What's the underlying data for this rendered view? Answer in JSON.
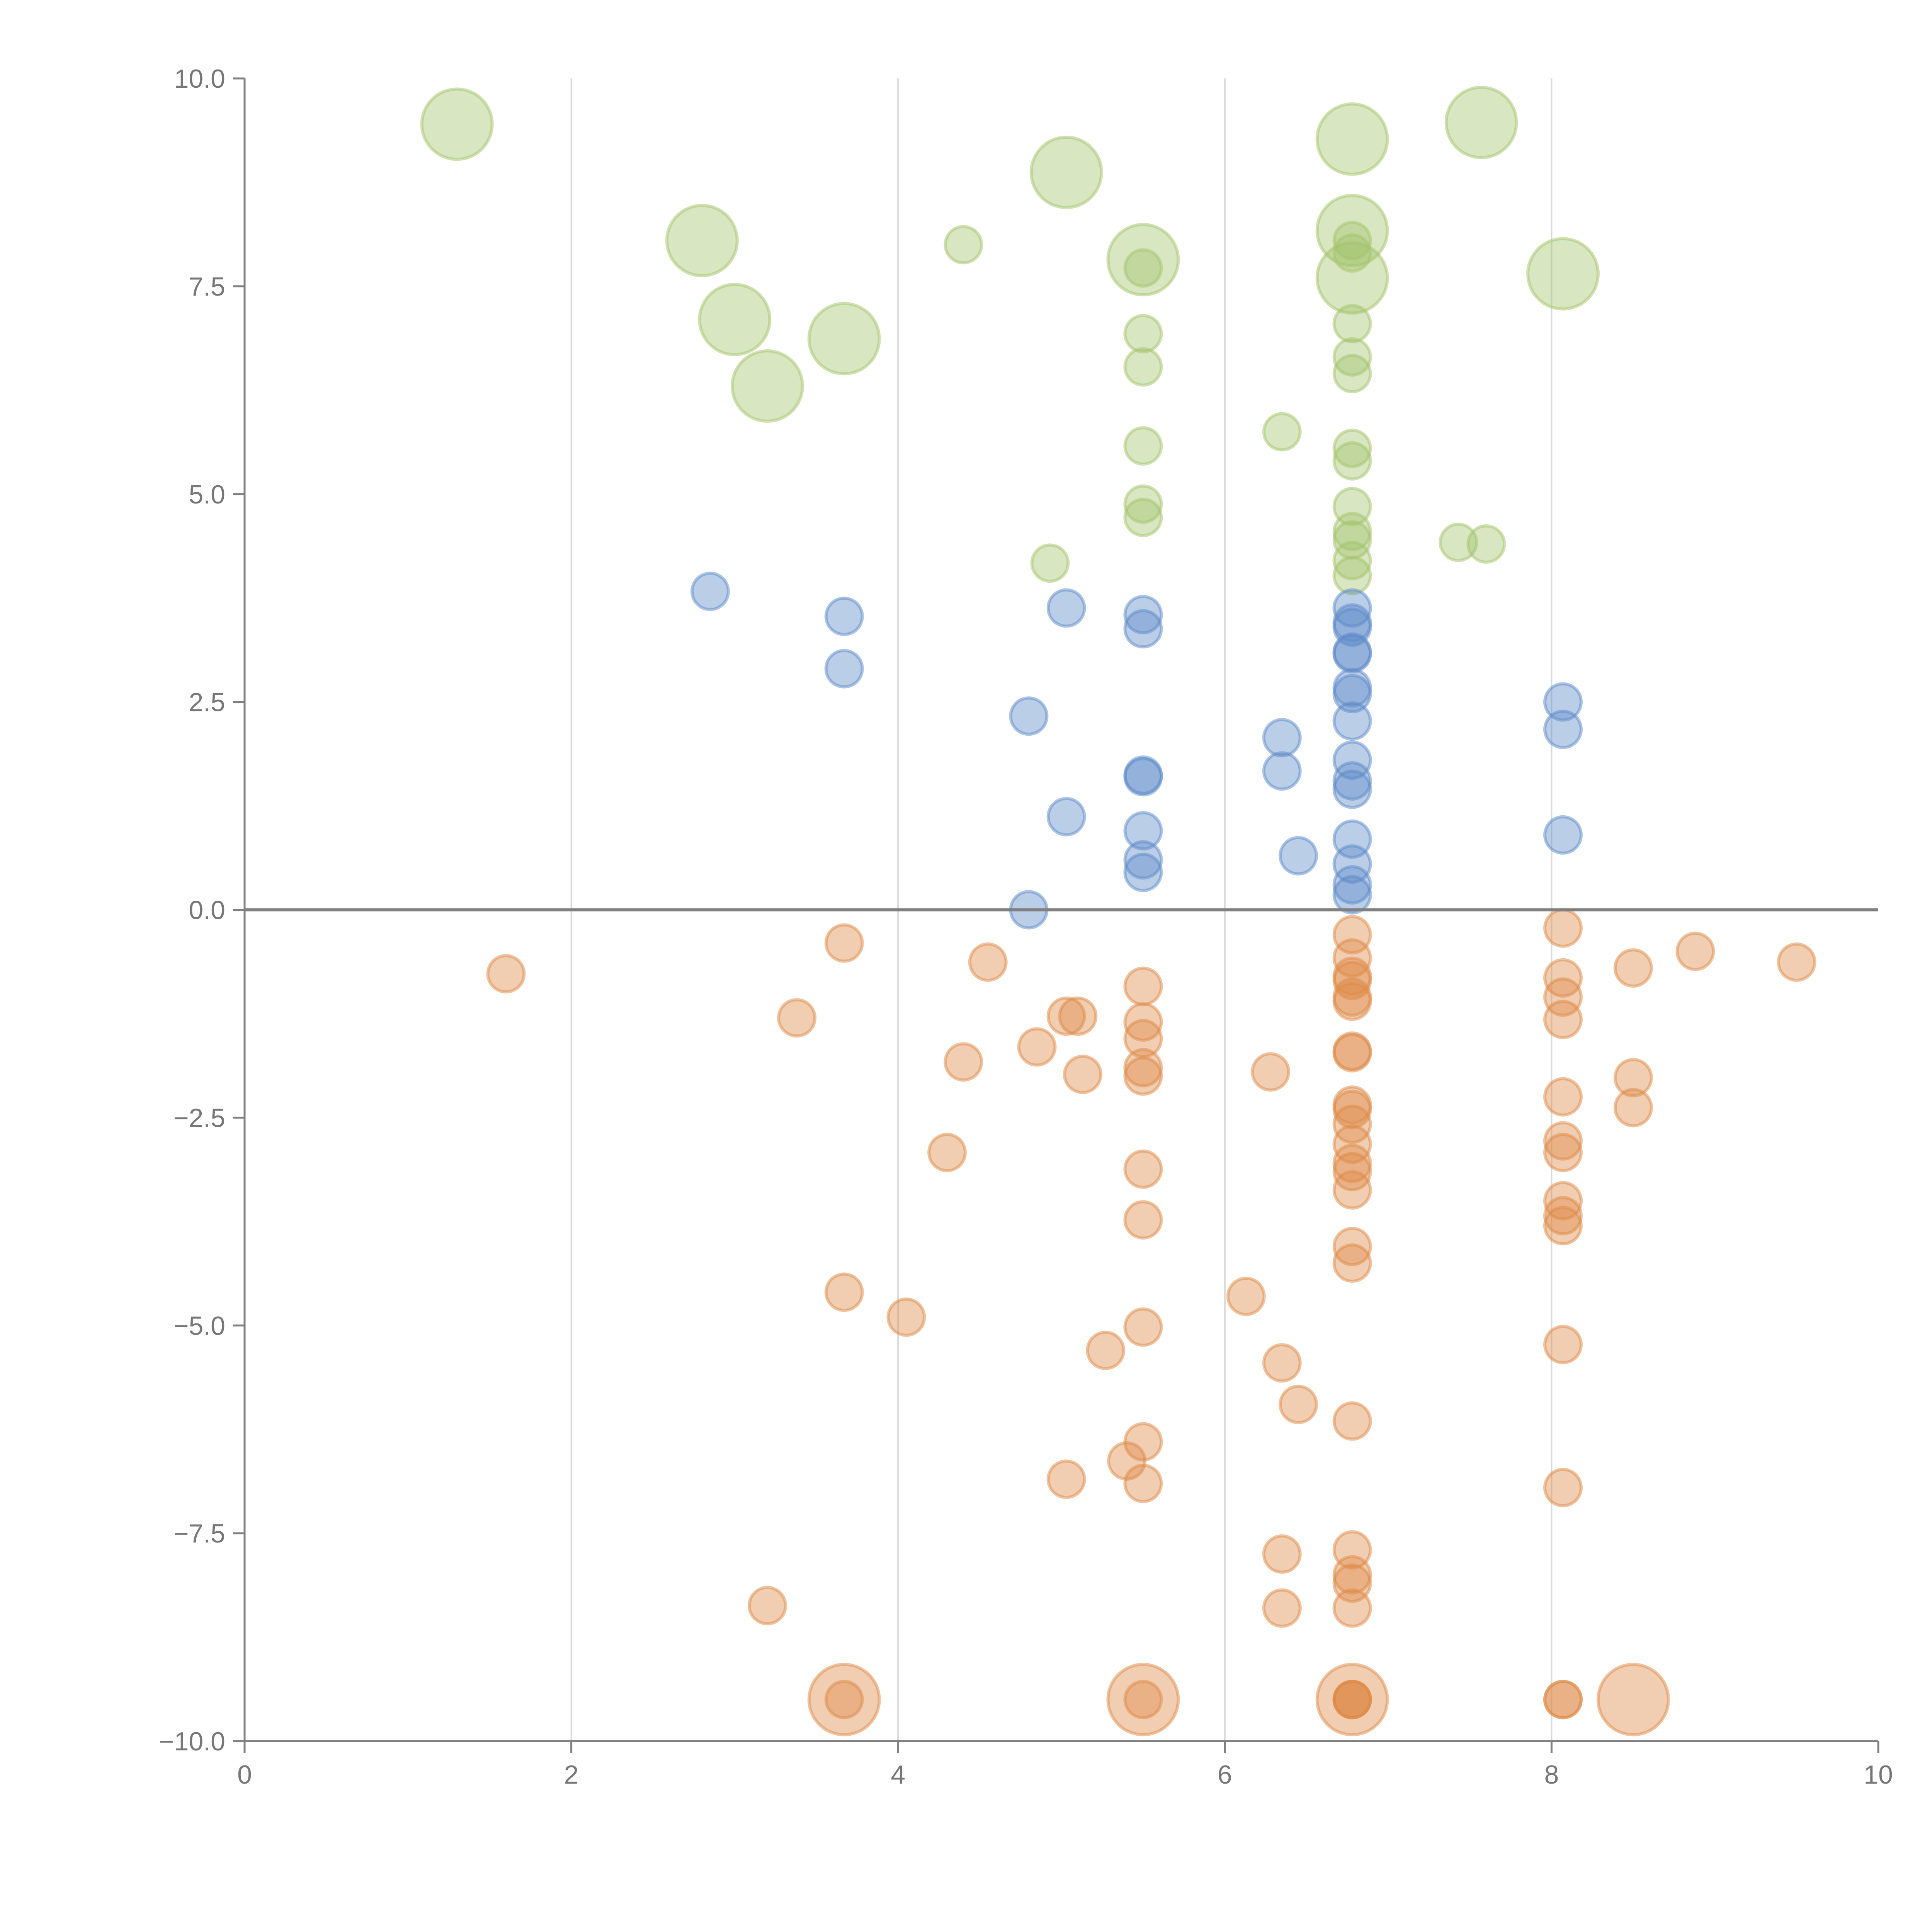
{
  "chart_data": {
    "type": "scatter",
    "title": "",
    "xlabel": "",
    "ylabel": "",
    "xlim": [
      0,
      10
    ],
    "ylim": [
      -10,
      10
    ],
    "grid": "vertical",
    "x_ticks": [
      "0",
      "2",
      "4",
      "6",
      "8",
      "10"
    ],
    "y_ticks": [
      "10.0",
      "7.5",
      "5.0",
      "2.5",
      "0.0",
      "−2.5",
      "−5.0",
      "−7.5",
      "−10.0"
    ],
    "size_note": "point size 1 = small, 2 = large",
    "colors": {
      "green": "#a3c46c",
      "blue": "#5e8ac7",
      "orange": "#dd8a48",
      "axis": "#808080",
      "grid": "#d9d9d9"
    },
    "series": [
      {
        "name": "green",
        "color": "#a3c46c",
        "points": [
          [
            1.3,
            9.45,
            2
          ],
          [
            2.8,
            8.05,
            2
          ],
          [
            3.0,
            7.1,
            2
          ],
          [
            3.2,
            6.3,
            2
          ],
          [
            3.67,
            6.87,
            2
          ],
          [
            5.03,
            8.87,
            2
          ],
          [
            5.5,
            7.82,
            2
          ],
          [
            6.78,
            9.27,
            2
          ],
          [
            6.78,
            8.17,
            2
          ],
          [
            6.78,
            7.6,
            2
          ],
          [
            7.57,
            9.47,
            2
          ],
          [
            8.07,
            7.65,
            2
          ],
          [
            4.4,
            8.0,
            1
          ],
          [
            5.5,
            7.72,
            1
          ],
          [
            6.78,
            8.05,
            1
          ],
          [
            6.78,
            7.9,
            1
          ],
          [
            5.5,
            6.93,
            1
          ],
          [
            5.5,
            6.53,
            1
          ],
          [
            6.78,
            7.05,
            1
          ],
          [
            6.78,
            6.65,
            1
          ],
          [
            6.78,
            6.45,
            1
          ],
          [
            6.35,
            5.75,
            1
          ],
          [
            5.5,
            5.58,
            1
          ],
          [
            6.78,
            5.55,
            1
          ],
          [
            6.78,
            5.4,
            1
          ],
          [
            5.5,
            4.88,
            1
          ],
          [
            5.5,
            4.72,
            1
          ],
          [
            6.78,
            4.85,
            1
          ],
          [
            6.78,
            4.55,
            1
          ],
          [
            6.78,
            4.45,
            1
          ],
          [
            6.78,
            4.2,
            1
          ],
          [
            6.78,
            4.02,
            1
          ],
          [
            4.93,
            4.17,
            1
          ],
          [
            7.43,
            4.42,
            1
          ],
          [
            7.6,
            4.4,
            1
          ]
        ]
      },
      {
        "name": "blue",
        "color": "#5e8ac7",
        "points": [
          [
            2.85,
            3.83,
            1
          ],
          [
            3.67,
            3.53,
            1
          ],
          [
            3.67,
            2.9,
            1
          ],
          [
            5.03,
            3.63,
            1
          ],
          [
            5.5,
            3.55,
            1
          ],
          [
            5.5,
            3.38,
            1
          ],
          [
            4.8,
            2.33,
            1
          ],
          [
            5.5,
            1.62,
            1
          ],
          [
            5.5,
            1.6,
            1
          ],
          [
            5.03,
            1.12,
            1
          ],
          [
            5.5,
            0.95,
            1
          ],
          [
            5.5,
            0.6,
            1
          ],
          [
            5.5,
            0.45,
            1
          ],
          [
            4.8,
            0.0,
            1
          ],
          [
            6.35,
            2.07,
            1
          ],
          [
            6.35,
            1.67,
            1
          ],
          [
            6.45,
            0.65,
            1
          ],
          [
            6.78,
            3.63,
            1
          ],
          [
            6.78,
            3.45,
            1
          ],
          [
            6.78,
            3.4,
            1
          ],
          [
            6.78,
            3.1,
            1
          ],
          [
            6.78,
            3.08,
            1
          ],
          [
            6.78,
            2.67,
            1
          ],
          [
            6.78,
            2.6,
            1
          ],
          [
            6.78,
            2.27,
            1
          ],
          [
            6.78,
            1.8,
            1
          ],
          [
            6.78,
            1.55,
            1
          ],
          [
            6.78,
            1.45,
            1
          ],
          [
            6.78,
            0.85,
            1
          ],
          [
            6.78,
            0.55,
            1
          ],
          [
            6.78,
            0.3,
            1
          ],
          [
            6.78,
            0.18,
            1
          ],
          [
            8.07,
            2.5,
            1
          ],
          [
            8.07,
            2.17,
            1
          ],
          [
            8.07,
            0.9,
            1
          ]
        ]
      },
      {
        "name": "orange",
        "color": "#dd8a48",
        "points": [
          [
            3.67,
            -9.5,
            2
          ],
          [
            5.5,
            -9.5,
            2
          ],
          [
            6.78,
            -9.5,
            2
          ],
          [
            8.5,
            -9.5,
            2
          ],
          [
            1.6,
            -0.77,
            1
          ],
          [
            3.67,
            -0.4,
            1
          ],
          [
            3.38,
            -1.3,
            1
          ],
          [
            4.55,
            -0.63,
            1
          ],
          [
            4.4,
            -1.83,
            1
          ],
          [
            4.85,
            -1.65,
            1
          ],
          [
            5.03,
            -1.28,
            1
          ],
          [
            5.1,
            -1.28,
            1
          ],
          [
            5.13,
            -1.98,
            1
          ],
          [
            4.3,
            -2.92,
            1
          ],
          [
            5.5,
            -0.92,
            1
          ],
          [
            5.5,
            -1.35,
            1
          ],
          [
            5.5,
            -1.55,
            1
          ],
          [
            5.5,
            -1.9,
            1
          ],
          [
            5.5,
            -2.0,
            1
          ],
          [
            5.5,
            -3.12,
            1
          ],
          [
            5.5,
            -3.73,
            1
          ],
          [
            6.28,
            -1.95,
            1
          ],
          [
            6.78,
            -0.3,
            1
          ],
          [
            6.78,
            -0.58,
            1
          ],
          [
            6.78,
            -0.8,
            1
          ],
          [
            6.78,
            -0.85,
            1
          ],
          [
            6.78,
            -1.05,
            1
          ],
          [
            6.78,
            -1.1,
            1
          ],
          [
            6.78,
            -1.7,
            1
          ],
          [
            6.78,
            -1.72,
            1
          ],
          [
            6.78,
            -2.35,
            1
          ],
          [
            6.78,
            -2.4,
            1
          ],
          [
            6.78,
            -2.58,
            1
          ],
          [
            6.78,
            -2.82,
            1
          ],
          [
            6.78,
            -3.05,
            1
          ],
          [
            6.78,
            -3.15,
            1
          ],
          [
            6.78,
            -3.37,
            1
          ],
          [
            6.78,
            -4.05,
            1
          ],
          [
            6.78,
            -4.25,
            1
          ],
          [
            8.07,
            -0.22,
            1
          ],
          [
            8.07,
            -0.82,
            1
          ],
          [
            8.07,
            -1.05,
            1
          ],
          [
            8.07,
            -1.32,
            1
          ],
          [
            8.07,
            -2.25,
            1
          ],
          [
            8.07,
            -2.78,
            1
          ],
          [
            8.07,
            -2.92,
            1
          ],
          [
            8.07,
            -3.5,
            1
          ],
          [
            8.07,
            -3.68,
            1
          ],
          [
            8.07,
            -3.8,
            1
          ],
          [
            8.5,
            -0.7,
            1
          ],
          [
            8.5,
            -2.02,
            1
          ],
          [
            8.5,
            -2.38,
            1
          ],
          [
            8.88,
            -0.5,
            1
          ],
          [
            9.5,
            -0.63,
            1
          ],
          [
            3.67,
            -4.6,
            1
          ],
          [
            4.05,
            -4.9,
            1
          ],
          [
            5.5,
            -5.02,
            1
          ],
          [
            5.27,
            -5.3,
            1
          ],
          [
            6.13,
            -4.65,
            1
          ],
          [
            6.35,
            -5.45,
            1
          ],
          [
            6.45,
            -5.95,
            1
          ],
          [
            6.78,
            -6.15,
            1
          ],
          [
            8.07,
            -5.23,
            1
          ],
          [
            5.5,
            -6.4,
            1
          ],
          [
            5.4,
            -6.63,
            1
          ],
          [
            5.03,
            -6.85,
            1
          ],
          [
            5.5,
            -6.9,
            1
          ],
          [
            8.07,
            -6.95,
            1
          ],
          [
            6.35,
            -7.75,
            1
          ],
          [
            6.78,
            -7.7,
            1
          ],
          [
            6.78,
            -8.0,
            1
          ],
          [
            6.78,
            -8.1,
            1
          ],
          [
            6.35,
            -8.4,
            1
          ],
          [
            6.78,
            -8.4,
            1
          ],
          [
            3.2,
            -8.37,
            1
          ],
          [
            3.67,
            -9.5,
            1
          ],
          [
            5.5,
            -9.5,
            1
          ],
          [
            6.78,
            -9.5,
            1
          ],
          [
            6.78,
            -9.5,
            1
          ],
          [
            6.78,
            -9.5,
            1
          ],
          [
            8.07,
            -9.5,
            1
          ],
          [
            8.07,
            -9.5,
            1
          ]
        ]
      }
    ]
  }
}
